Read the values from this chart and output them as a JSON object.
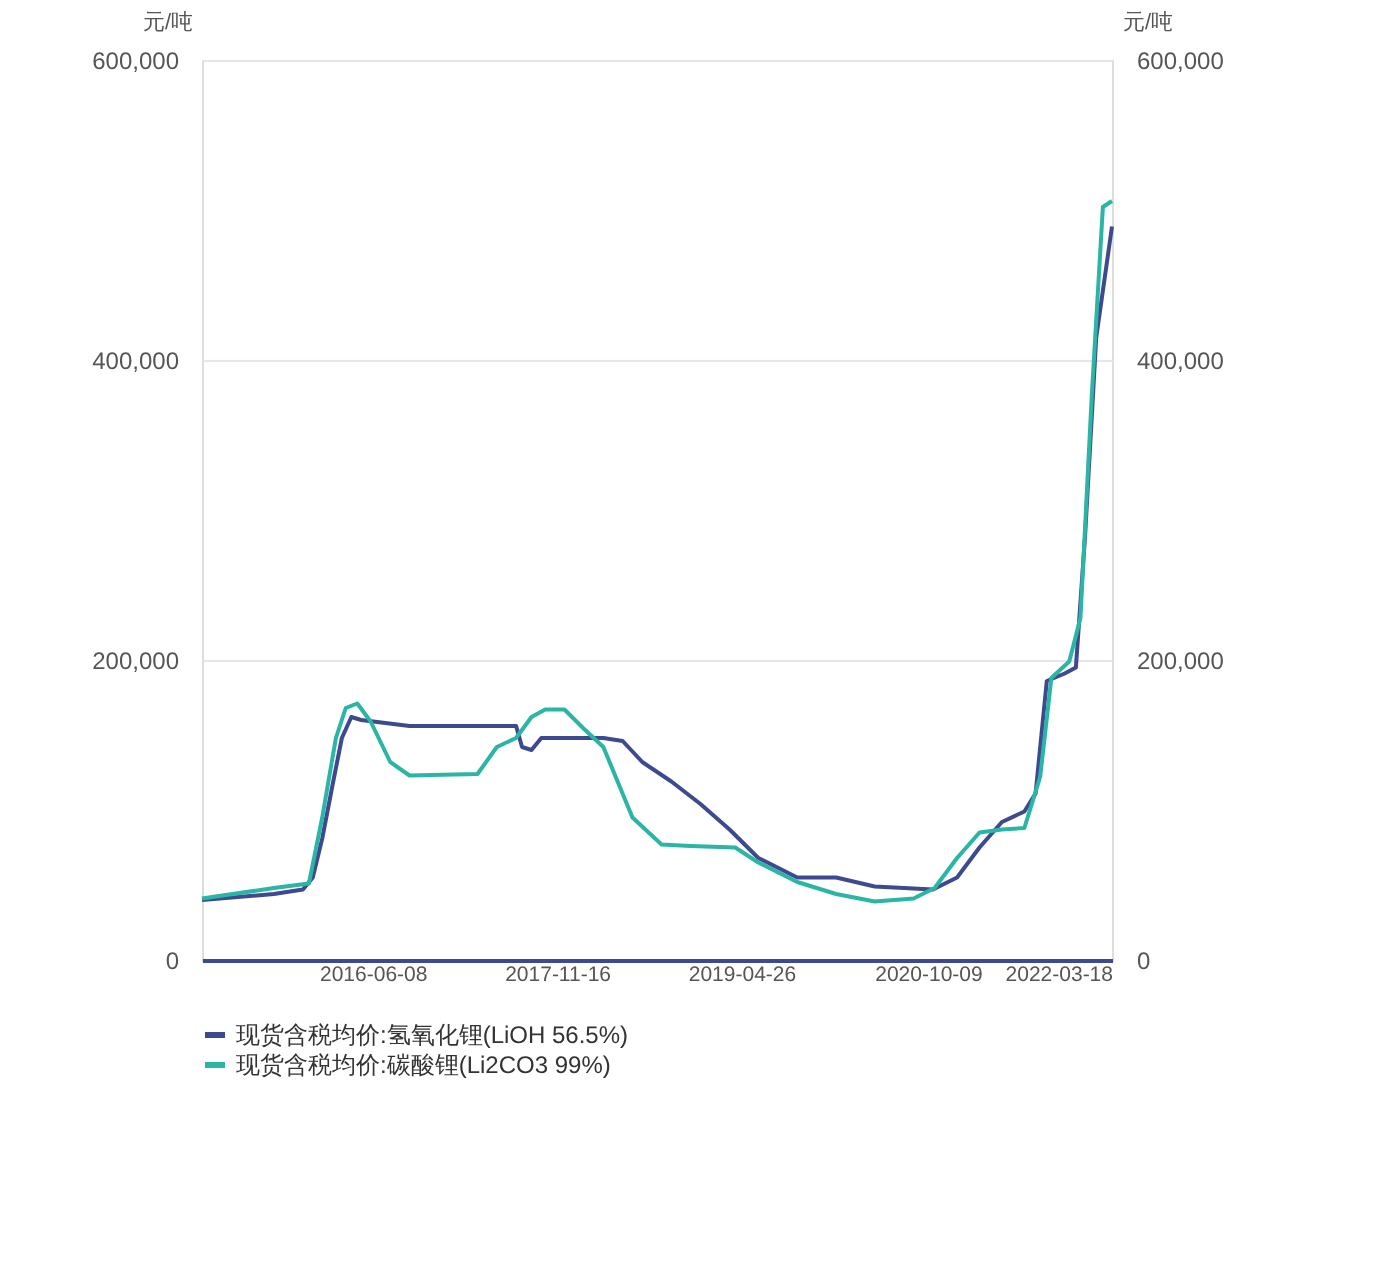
{
  "chart_data": {
    "type": "line",
    "ylabel": "元/吨",
    "y2label": "元/吨",
    "xlim": [
      "2015-02-07",
      "2022-03-18"
    ],
    "xticks": [
      "2016-06-08",
      "2017-11-16",
      "2019-04-26",
      "2020-10-09",
      "2022-03-18"
    ],
    "ylim": [
      0,
      600000
    ],
    "yticks": [
      {
        "value": 0,
        "label": "0"
      },
      {
        "value": 200000,
        "label": "200,000"
      },
      {
        "value": 400000,
        "label": "400,000"
      },
      {
        "value": 600000,
        "label": "600,000"
      }
    ],
    "y2lim": [
      0,
      600000
    ],
    "y2ticks": [
      {
        "value": 0,
        "label": "0"
      },
      {
        "value": 200000,
        "label": "200,000"
      },
      {
        "value": 400000,
        "label": "400,000"
      },
      {
        "value": 600000,
        "label": "600,000"
      }
    ],
    "grid": "y",
    "legend": "bottom",
    "marker": "none",
    "line_style": "solid",
    "series": [
      {
        "name": "现货含税均价:氢氧化锂(LiOH 56.5%)",
        "color": "#3d4a8f",
        "x": [
          "2015-02-07",
          "2015-08-31",
          "2015-11-22",
          "2015-12-20",
          "2016-01-16",
          "2016-02-13",
          "2016-03-12",
          "2016-04-08",
          "2016-05-06",
          "2016-09-21",
          "2017-07-22",
          "2017-08-08",
          "2017-09-04",
          "2017-10-02",
          "2018-03-28",
          "2018-05-22",
          "2018-07-17",
          "2018-10-08",
          "2018-12-30",
          "2019-03-23",
          "2019-06-13",
          "2019-10-02",
          "2020-01-21",
          "2020-05-10",
          "2020-10-23",
          "2020-12-31",
          "2021-03-05",
          "2021-05-08",
          "2021-07-11",
          "2021-08-12",
          "2021-09-13",
          "2021-11-03",
          "2021-12-05",
          "2021-12-31",
          "2022-02-01",
          "2022-03-18"
        ],
        "values": [
          40000,
          44000,
          47000,
          55000,
          81000,
          115000,
          148000,
          162000,
          160000,
          156000,
          156000,
          142000,
          140000,
          148000,
          148000,
          146000,
          132000,
          119000,
          104000,
          87000,
          68000,
          55000,
          55000,
          49000,
          47000,
          55000,
          75000,
          92000,
          99000,
          111000,
          186000,
          191000,
          195000,
          282000,
          415000,
          489000
        ]
      },
      {
        "name": "现货含税均价:碳酸锂(Li2CO3 99%)",
        "color": "#2ab5a5",
        "x": [
          "2015-02-07",
          "2015-08-31",
          "2015-12-09",
          "2016-01-16",
          "2016-02-24",
          "2016-03-23",
          "2016-04-25",
          "2016-06-02",
          "2016-07-28",
          "2016-09-21",
          "2017-04-03",
          "2017-05-28",
          "2017-07-22",
          "2017-09-04",
          "2017-10-13",
          "2017-12-07",
          "2018-02-01",
          "2018-03-28",
          "2018-06-19",
          "2018-09-10",
          "2018-12-02",
          "2019-04-08",
          "2019-06-13",
          "2019-10-02",
          "2020-01-21",
          "2020-05-10",
          "2020-08-29",
          "2020-10-28",
          "2020-12-31",
          "2021-03-05",
          "2021-05-08",
          "2021-07-11",
          "2021-08-25",
          "2021-09-26",
          "2021-11-16",
          "2021-12-18",
          "2022-01-19",
          "2022-02-20",
          "2022-03-18"
        ],
        "values": [
          41000,
          48000,
          51000,
          95000,
          148000,
          168000,
          171000,
          159000,
          132000,
          123000,
          124000,
          142000,
          148000,
          162000,
          167000,
          167000,
          154000,
          142000,
          95000,
          77000,
          76000,
          75000,
          65000,
          52000,
          44000,
          39000,
          41000,
          48000,
          68000,
          85000,
          87000,
          88000,
          122000,
          188000,
          199000,
          228000,
          375000,
          502000,
          506000
        ]
      }
    ]
  }
}
